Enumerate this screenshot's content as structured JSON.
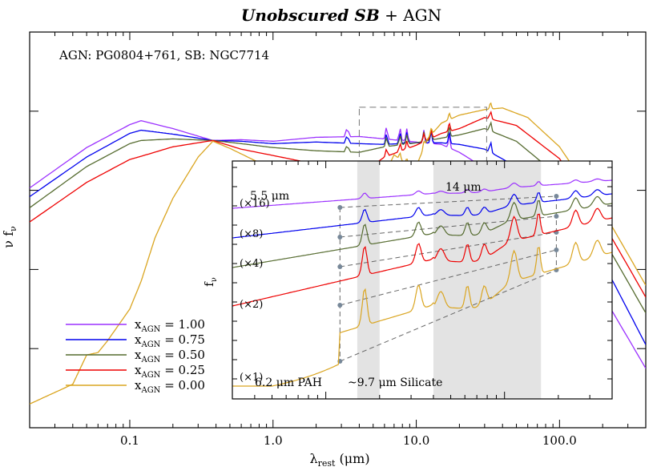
{
  "chart_data": {
    "type": "line",
    "title_bold": "Unobscured SB",
    "title_rest": " + AGN",
    "annotation": "AGN: PG0804+761, SB: NGC7714",
    "xlabel_main": "λ",
    "xlabel_sub": "rest",
    "xlabel_unit": " (μm)",
    "ylabel_main": "ν f",
    "ylabel_sub": "ν",
    "xscale": "log",
    "xlim": [
      0.02,
      400
    ],
    "ylog_decades": [
      -4,
      1
    ],
    "x_ticks": [
      {
        "value": 0.1,
        "label": "0.1"
      },
      {
        "value": 1.0,
        "label": "1.0"
      },
      {
        "value": 10.0,
        "label": "10.0"
      },
      {
        "value": 100.0,
        "label": "100.0"
      }
    ],
    "legend_position": "bottom-left",
    "series": [
      {
        "name_main": "x",
        "name_sub": "AGN",
        "name_value": " = 1.00",
        "color": "#9b30ff",
        "points": [
          [
            0.02,
            -0.97
          ],
          [
            0.05,
            -0.46
          ],
          [
            0.1,
            -0.17
          ],
          [
            0.12,
            -0.12
          ],
          [
            0.2,
            -0.22
          ],
          [
            0.38,
            -0.37
          ],
          [
            0.6,
            -0.36
          ],
          [
            1.0,
            -0.38
          ],
          [
            2.0,
            -0.33
          ],
          [
            4.0,
            -0.32
          ],
          [
            6.0,
            -0.35
          ],
          [
            10.0,
            -0.39
          ],
          [
            15.0,
            -0.42
          ],
          [
            20.0,
            -0.52
          ],
          [
            30.0,
            -0.72
          ],
          [
            50.0,
            -1.05
          ],
          [
            100.0,
            -1.55
          ],
          [
            200.0,
            -2.32
          ],
          [
            400.0,
            -3.25
          ]
        ]
      },
      {
        "name_main": "x",
        "name_sub": "AGN",
        "name_value": " = 0.75",
        "color": "#0000ee",
        "points": [
          [
            0.02,
            -1.08
          ],
          [
            0.05,
            -0.58
          ],
          [
            0.1,
            -0.28
          ],
          [
            0.12,
            -0.24
          ],
          [
            0.2,
            -0.29
          ],
          [
            0.38,
            -0.37
          ],
          [
            0.6,
            -0.38
          ],
          [
            1.0,
            -0.41
          ],
          [
            2.0,
            -0.39
          ],
          [
            4.0,
            -0.41
          ],
          [
            6.0,
            -0.42
          ],
          [
            10.0,
            -0.4
          ],
          [
            15.0,
            -0.4
          ],
          [
            20.0,
            -0.42
          ],
          [
            30.0,
            -0.48
          ],
          [
            50.0,
            -0.7
          ],
          [
            100.0,
            -1.1
          ],
          [
            200.0,
            -1.9
          ],
          [
            400.0,
            -2.95
          ]
        ]
      },
      {
        "name_main": "x",
        "name_sub": "AGN",
        "name_value": " = 0.50",
        "color": "#556b2f",
        "points": [
          [
            0.02,
            -1.22
          ],
          [
            0.05,
            -0.7
          ],
          [
            0.1,
            -0.41
          ],
          [
            0.12,
            -0.37
          ],
          [
            0.2,
            -0.35
          ],
          [
            0.38,
            -0.37
          ],
          [
            0.6,
            -0.41
          ],
          [
            1.0,
            -0.46
          ],
          [
            2.0,
            -0.5
          ],
          [
            4.0,
            -0.52
          ],
          [
            6.0,
            -0.45
          ],
          [
            10.0,
            -0.4
          ],
          [
            15.0,
            -0.34
          ],
          [
            20.0,
            -0.3
          ],
          [
            30.0,
            -0.22
          ],
          [
            50.0,
            -0.38
          ],
          [
            100.0,
            -0.83
          ],
          [
            200.0,
            -1.6
          ],
          [
            400.0,
            -2.55
          ]
        ]
      },
      {
        "name_main": "x",
        "name_sub": "AGN",
        "name_value": " = 0.25",
        "color": "#ee0000",
        "points": [
          [
            0.02,
            -1.4
          ],
          [
            0.05,
            -0.9
          ],
          [
            0.1,
            -0.61
          ],
          [
            0.12,
            -0.57
          ],
          [
            0.2,
            -0.45
          ],
          [
            0.38,
            -0.37
          ],
          [
            0.6,
            -0.48
          ],
          [
            1.0,
            -0.56
          ],
          [
            2.0,
            -0.67
          ],
          [
            4.0,
            -0.8
          ],
          [
            6.0,
            -0.58
          ],
          [
            10.0,
            -0.43
          ],
          [
            15.0,
            -0.28
          ],
          [
            20.0,
            -0.22
          ],
          [
            30.0,
            -0.08
          ],
          [
            50.0,
            -0.18
          ],
          [
            100.0,
            -0.6
          ],
          [
            200.0,
            -1.4
          ],
          [
            400.0,
            -2.35
          ]
        ]
      },
      {
        "name_main": "x",
        "name_sub": "AGN",
        "name_value": " = 0.00",
        "color": "#daa520",
        "points": [
          [
            0.02,
            -3.7
          ],
          [
            0.04,
            -3.45
          ],
          [
            0.05,
            -3.08
          ],
          [
            0.06,
            -3.05
          ],
          [
            0.07,
            -2.9
          ],
          [
            0.1,
            -2.5
          ],
          [
            0.12,
            -2.15
          ],
          [
            0.15,
            -1.6
          ],
          [
            0.2,
            -1.1
          ],
          [
            0.3,
            -0.58
          ],
          [
            0.38,
            -0.38
          ],
          [
            0.5,
            -0.47
          ],
          [
            0.8,
            -0.65
          ],
          [
            1.0,
            -0.73
          ],
          [
            1.5,
            -0.83
          ],
          [
            2.0,
            -0.9
          ],
          [
            3.0,
            -1.05
          ],
          [
            3.3,
            -1.15
          ],
          [
            3.8,
            -0.85
          ],
          [
            4.5,
            -1.2
          ],
          [
            5.5,
            -0.95
          ],
          [
            7.0,
            -0.55
          ],
          [
            9.7,
            -0.75
          ],
          [
            12.0,
            -0.35
          ],
          [
            15.0,
            -0.15
          ],
          [
            20.0,
            -0.05
          ],
          [
            30.0,
            0.02
          ],
          [
            40.0,
            0.04
          ],
          [
            60.0,
            -0.08
          ],
          [
            100.0,
            -0.45
          ],
          [
            200.0,
            -1.25
          ],
          [
            400.0,
            -2.2
          ]
        ]
      }
    ],
    "inset": {
      "ylabel_main": "f",
      "ylabel_sub": "ν",
      "shaded_regions": [
        [
          1.5,
          2.0
        ],
        [
          4.0,
          16.0
        ]
      ],
      "label_pah": "6.2 μm PAH",
      "label_silicate": "~9.7 μm Silicate",
      "label_55": "5.5 μm",
      "label_14": "14 μm",
      "multipliers": [
        "(×16)",
        "(×8)",
        "(×4)",
        "(×2)",
        "(×1)"
      ]
    }
  }
}
